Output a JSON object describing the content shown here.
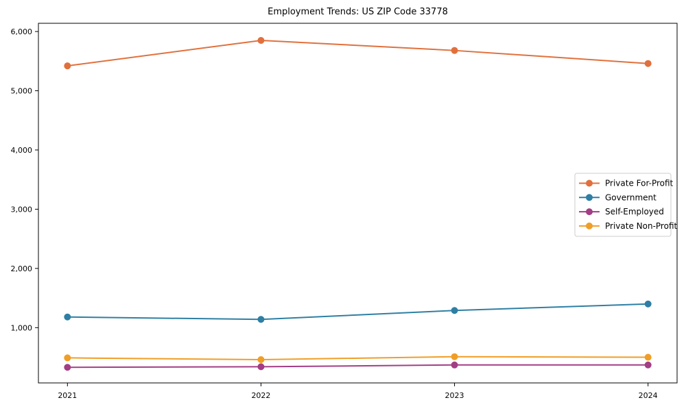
{
  "chart_data": {
    "type": "line",
    "title": "Employment Trends: US ZIP Code 33778",
    "x": [
      2021,
      2022,
      2023,
      2024
    ],
    "xtick_labels": [
      "2021",
      "2022",
      "2023",
      "2024"
    ],
    "series": [
      {
        "name": "Private For-Profit",
        "color": "#E1703C",
        "values": [
          5420,
          5850,
          5680,
          5460
        ]
      },
      {
        "name": "Government",
        "color": "#2E7FA3",
        "values": [
          1180,
          1140,
          1290,
          1400
        ]
      },
      {
        "name": "Self-Employed",
        "color": "#A33D85",
        "values": [
          330,
          340,
          370,
          370
        ]
      },
      {
        "name": "Private Non-Profit",
        "color": "#F09E26",
        "values": [
          490,
          460,
          510,
          500
        ]
      }
    ],
    "yticks": [
      1000,
      2000,
      3000,
      4000,
      5000,
      6000
    ],
    "ytick_labels": [
      "1,000",
      "2,000",
      "3,000",
      "4,000",
      "5,000",
      "6,000"
    ],
    "xlim": [
      2020.85,
      2024.15
    ],
    "ylim": [
      67,
      6139
    ],
    "grid": false,
    "legend_position": "center-right",
    "axis_color": "#000000",
    "legend_border_color": "#cccccc",
    "background_color": "#ffffff"
  }
}
